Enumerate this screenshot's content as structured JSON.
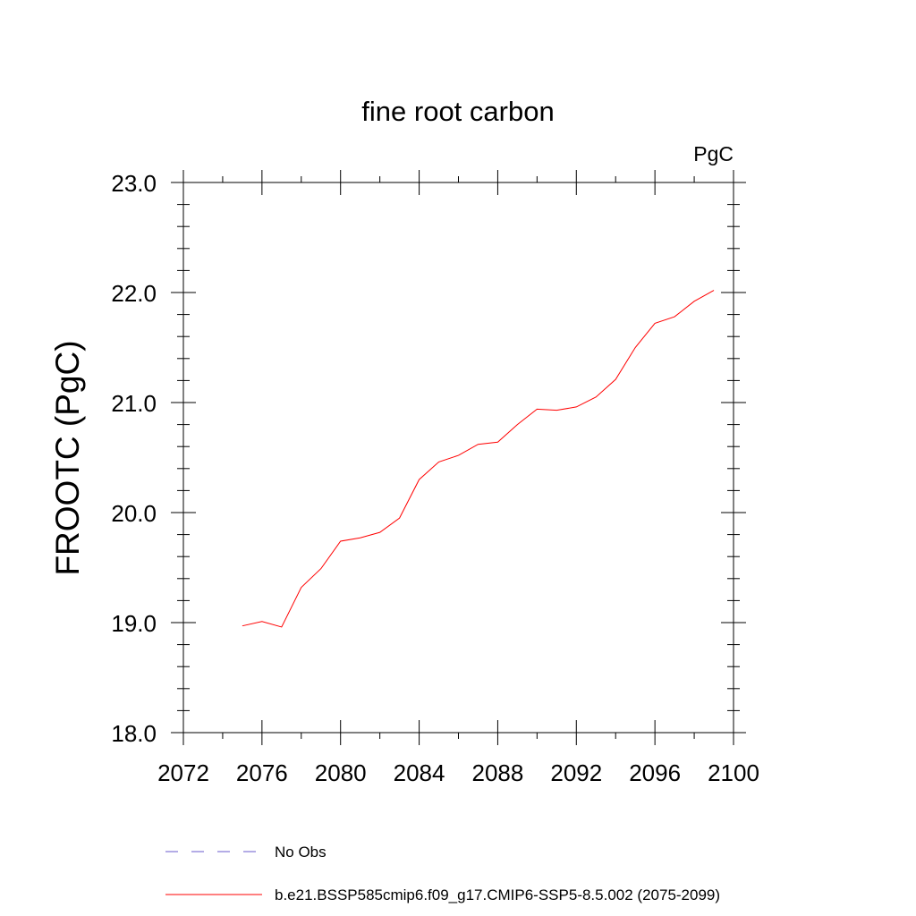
{
  "chart_data": {
    "type": "line",
    "title": "fine root carbon",
    "units": "PgC",
    "ylabel": "FROOTC  (PgC)",
    "xlabel": "",
    "xlim": [
      2072,
      2100
    ],
    "ylim": [
      18.0,
      23.0
    ],
    "x_ticks": [
      2072,
      2076,
      2080,
      2084,
      2088,
      2092,
      2096,
      2100
    ],
    "x_tick_labels": [
      "2072",
      "2076",
      "2080",
      "2084",
      "2088",
      "2092",
      "2096",
      "2100"
    ],
    "y_ticks": [
      18.0,
      19.0,
      20.0,
      21.0,
      22.0,
      23.0
    ],
    "y_tick_labels": [
      "18.0",
      "19.0",
      "20.0",
      "21.0",
      "22.0",
      "23.0"
    ],
    "grid": false,
    "legend_position": "bottom",
    "series": [
      {
        "name": "b.e21.BSSP585cmip6.f09_g17.CMIP6-SSP5-8.5.002 (2075-2099)",
        "color": "#ff0000",
        "style": "solid",
        "x": [
          2075,
          2076,
          2077,
          2078,
          2079,
          2080,
          2081,
          2082,
          2083,
          2084,
          2085,
          2086,
          2087,
          2088,
          2089,
          2090,
          2091,
          2092,
          2093,
          2094,
          2095,
          2096,
          2097,
          2098,
          2099
        ],
        "y": [
          18.97,
          19.01,
          18.96,
          19.32,
          19.49,
          19.74,
          19.77,
          19.82,
          19.95,
          20.3,
          20.46,
          20.52,
          20.62,
          20.64,
          20.8,
          20.94,
          20.93,
          20.96,
          21.05,
          21.21,
          21.5,
          21.72,
          21.78,
          21.92,
          22.02
        ]
      }
    ],
    "legend": [
      {
        "label": "No Obs",
        "color": "#6a5acd",
        "style": "dashed"
      },
      {
        "label": "b.e21.BSSP585cmip6.f09_g17.CMIP6-SSP5-8.5.002 (2075-2099)",
        "color": "#ff0000",
        "style": "solid"
      }
    ]
  }
}
